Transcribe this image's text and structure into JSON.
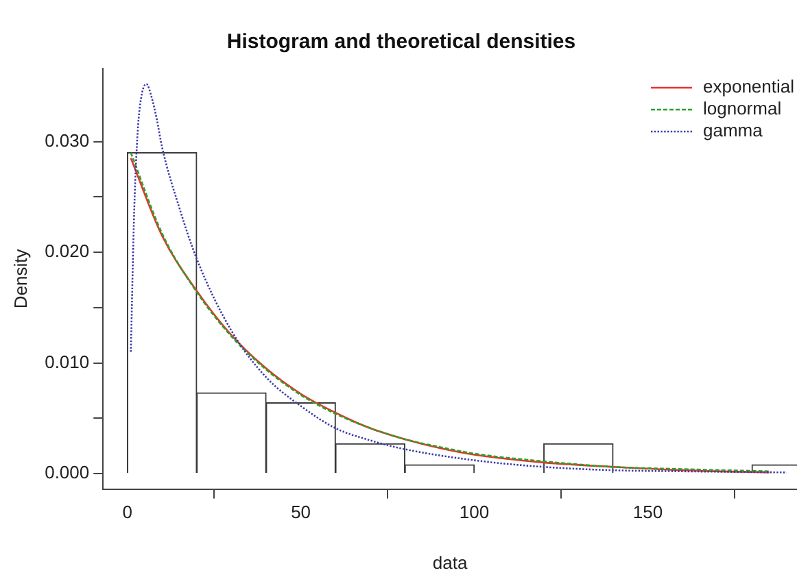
{
  "chart_data": {
    "type": "histogram",
    "title": "Histogram and theoretical densities",
    "xlabel": "data",
    "ylabel": "Density",
    "bins": [
      0,
      20,
      40,
      60,
      80,
      100,
      120,
      140,
      160,
      180,
      200
    ],
    "values": [
      0.029,
      0.0073,
      0.0064,
      0.0027,
      0.0008,
      0,
      0.0027,
      0,
      0,
      0.0008
    ],
    "color": "#ffffff",
    "xlim": [
      -7,
      193
    ],
    "xticks": [
      0,
      50,
      100,
      150
    ],
    "ylim": [
      -0.0014,
      0.0366
    ],
    "yticks": [
      {
        "value": 0,
        "label": "0.000"
      },
      {
        "value": 0.005,
        "label": null
      },
      {
        "value": 0.01,
        "label": "0.010"
      },
      {
        "value": 0.015,
        "label": null
      },
      {
        "value": 0.02,
        "label": "0.020"
      },
      {
        "value": 0.025,
        "label": null
      },
      {
        "value": 0.03,
        "label": "0.030"
      }
    ],
    "grid": false,
    "legend": "top right",
    "marker": "none",
    "series": [
      {
        "type": "line",
        "name": "exponential",
        "color": "#e8332b",
        "line_style": "solid",
        "x": [
          1,
          10,
          20,
          30,
          40,
          50,
          60,
          70,
          80,
          90,
          100,
          120,
          140,
          160,
          185
        ],
        "values": [
          0.0285,
          0.0215,
          0.0165,
          0.0125,
          0.0095,
          0.0072,
          0.0055,
          0.0041,
          0.0031,
          0.0023,
          0.0017,
          0.001,
          0.0006,
          0.0003,
          0.0001
        ]
      },
      {
        "type": "line",
        "name": "lognormal",
        "color": "#2ca02c",
        "line_style": "dashed",
        "x": [
          1,
          10,
          20,
          30,
          40,
          50,
          60,
          70,
          80,
          90,
          100,
          120,
          140,
          160,
          185
        ],
        "values": [
          0.029,
          0.0217,
          0.0164,
          0.0124,
          0.0094,
          0.0071,
          0.0054,
          0.0041,
          0.0031,
          0.0024,
          0.0018,
          0.0011,
          0.0006,
          0.0004,
          0.0002
        ]
      },
      {
        "type": "line",
        "name": "gamma",
        "color": "#3a3aa8",
        "line_style": "dotted",
        "x": [
          1,
          2,
          3,
          4,
          5.5,
          7,
          8.5,
          10,
          15,
          20,
          30,
          40,
          50,
          60,
          70,
          80,
          100,
          120,
          140,
          160,
          190
        ],
        "values": [
          0.011,
          0.024,
          0.031,
          0.034,
          0.0352,
          0.034,
          0.032,
          0.0295,
          0.024,
          0.0194,
          0.0129,
          0.0087,
          0.0061,
          0.0041,
          0.003,
          0.0022,
          0.0012,
          0.0006,
          0.0003,
          0.0002,
          0.0001
        ]
      }
    ]
  }
}
